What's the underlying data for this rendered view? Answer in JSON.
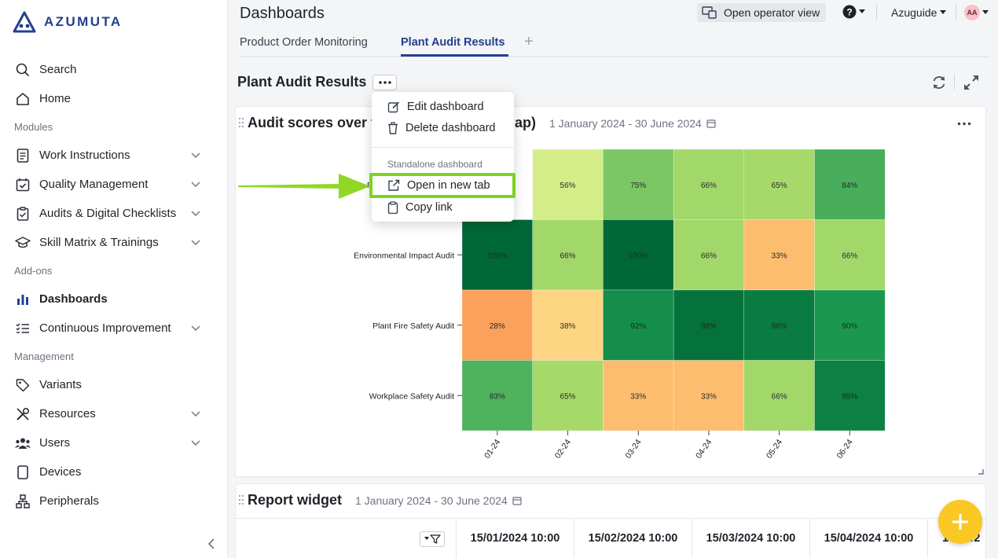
{
  "brand": {
    "name": "AZUMUTA"
  },
  "sidebar": {
    "search": "Search",
    "home": "Home",
    "modules_label": "Modules",
    "work_instructions": "Work Instructions",
    "quality_management": "Quality Management",
    "audits": "Audits & Digital Checklists",
    "skill_matrix": "Skill Matrix & Trainings",
    "addons_label": "Add-ons",
    "dashboards": "Dashboards",
    "continuous_improvement": "Continuous Improvement",
    "management_label": "Management",
    "variants": "Variants",
    "resources": "Resources",
    "users": "Users",
    "devices": "Devices",
    "peripherals": "Peripherals"
  },
  "header": {
    "title": "Dashboards",
    "operator_view": "Open operator view",
    "workspace": "Azuguide",
    "avatar_initials": "AA"
  },
  "tabs": [
    {
      "label": "Product Order Monitoring"
    },
    {
      "label": "Plant Audit Results"
    }
  ],
  "dashboard": {
    "title": "Plant Audit Results"
  },
  "menu": {
    "edit": "Edit dashboard",
    "delete": "Delete dashboard",
    "section": "Standalone dashboard",
    "open_new_tab": "Open in new tab",
    "copy_link": "Copy link"
  },
  "widget1": {
    "title": "Audit scores over time (heatmap)",
    "visible_title_start": "Audit scores over t",
    "visible_title_end": "ap)",
    "date_range": "1 January 2024 - 30 June 2024"
  },
  "widget2": {
    "title": "Report widget",
    "date_range": "1 January 2024 - 30 June 2024",
    "columns": [
      "15/01/2024 10:00",
      "15/02/2024 10:00",
      "15/03/2024 10:00",
      "15/04/2024 10:00",
      "15/05/2"
    ]
  },
  "chart_data": {
    "type": "heatmap",
    "x": [
      "01-24",
      "02-24",
      "03-24",
      "04-24",
      "05-24",
      "06-24"
    ],
    "y": [
      "",
      "Environmental Impact Audit",
      "Plant Fire Safety Audit",
      "Workplace Safety Audit"
    ],
    "values": [
      [
        null,
        56,
        75,
        66,
        65,
        84
      ],
      [
        100,
        66,
        100,
        66,
        33,
        66
      ],
      [
        28,
        38,
        92,
        98,
        96,
        90
      ],
      [
        83,
        65,
        33,
        33,
        66,
        95
      ]
    ],
    "value_suffix": "%",
    "first_row_label_visible": "F"
  }
}
